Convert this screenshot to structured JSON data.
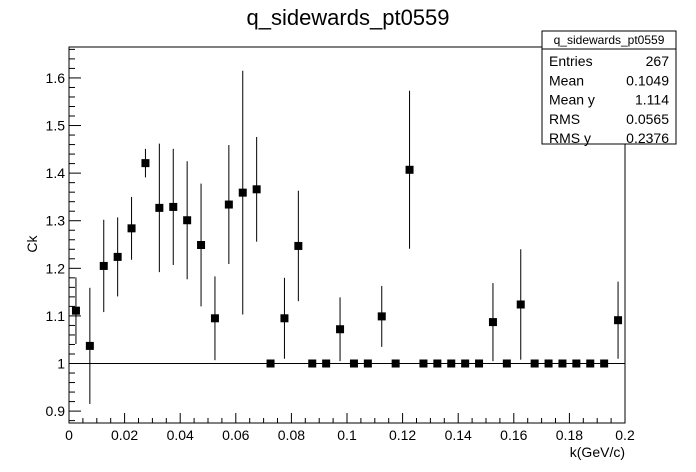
{
  "chart_data": {
    "type": "scatter",
    "title": "q_sidewards_pt0559",
    "xlabel": "k(GeV/c)",
    "ylabel": "Ck",
    "xlim": [
      0,
      0.2
    ],
    "ylim": [
      0.875,
      1.665
    ],
    "x_ticks": [
      "0",
      "0.02",
      "0.04",
      "0.06",
      "0.08",
      "0.1",
      "0.12",
      "0.14",
      "0.16",
      "0.18",
      "0.2"
    ],
    "x_tick_values": [
      0,
      0.02,
      0.04,
      0.06,
      0.08,
      0.1,
      0.12,
      0.14,
      0.16,
      0.18,
      0.2
    ],
    "y_ticks": [
      "0.9",
      "1",
      "1.1",
      "1.2",
      "1.3",
      "1.4",
      "1.5",
      "1.6"
    ],
    "y_tick_values": [
      0.9,
      1.0,
      1.1,
      1.2,
      1.3,
      1.4,
      1.5,
      1.6
    ],
    "reference_line": 1.0,
    "grid": false,
    "legend": "none",
    "marker_color": "#000000",
    "series": [
      {
        "points": [
          {
            "x": 0.0025,
            "y": 1.111,
            "err": 0.07
          },
          {
            "x": 0.0075,
            "y": 1.037,
            "err": 0.122
          },
          {
            "x": 0.0125,
            "y": 1.205,
            "err": 0.097
          },
          {
            "x": 0.0175,
            "y": 1.224,
            "err": 0.083
          },
          {
            "x": 0.0225,
            "y": 1.284,
            "err": 0.066
          },
          {
            "x": 0.0275,
            "y": 1.421,
            "err": 0.03
          },
          {
            "x": 0.0325,
            "y": 1.327,
            "err": 0.135
          },
          {
            "x": 0.0375,
            "y": 1.329,
            "err": 0.122
          },
          {
            "x": 0.0425,
            "y": 1.301,
            "err": 0.124
          },
          {
            "x": 0.0475,
            "y": 1.249,
            "err": 0.129
          },
          {
            "x": 0.0525,
            "y": 1.095,
            "err": 0.088
          },
          {
            "x": 0.0575,
            "y": 1.334,
            "err": 0.125
          },
          {
            "x": 0.0625,
            "y": 1.359,
            "err": 0.256
          },
          {
            "x": 0.0675,
            "y": 1.366,
            "err": 0.11
          },
          {
            "x": 0.0725,
            "y": 1.0,
            "err": 0
          },
          {
            "x": 0.0775,
            "y": 1.095,
            "err": 0.085
          },
          {
            "x": 0.0825,
            "y": 1.247,
            "err": 0.116
          },
          {
            "x": 0.0875,
            "y": 1.0,
            "err": 0
          },
          {
            "x": 0.0925,
            "y": 1.0,
            "err": 0
          },
          {
            "x": 0.0975,
            "y": 1.072,
            "err": 0.067
          },
          {
            "x": 0.1025,
            "y": 1.0,
            "err": 0
          },
          {
            "x": 0.1075,
            "y": 1.0,
            "err": 0
          },
          {
            "x": 0.1125,
            "y": 1.099,
            "err": 0.064
          },
          {
            "x": 0.1175,
            "y": 1.0,
            "err": 0
          },
          {
            "x": 0.1225,
            "y": 1.407,
            "err": 0.166
          },
          {
            "x": 0.1275,
            "y": 1.0,
            "err": 0
          },
          {
            "x": 0.1325,
            "y": 1.0,
            "err": 0
          },
          {
            "x": 0.1375,
            "y": 1.0,
            "err": 0
          },
          {
            "x": 0.1425,
            "y": 1.0,
            "err": 0
          },
          {
            "x": 0.1475,
            "y": 1.0,
            "err": 0
          },
          {
            "x": 0.1525,
            "y": 1.087,
            "err": 0.082
          },
          {
            "x": 0.1575,
            "y": 1.0,
            "err": 0
          },
          {
            "x": 0.1625,
            "y": 1.124,
            "err": 0.116
          },
          {
            "x": 0.1675,
            "y": 1.0,
            "err": 0
          },
          {
            "x": 0.1725,
            "y": 1.0,
            "err": 0
          },
          {
            "x": 0.1775,
            "y": 1.0,
            "err": 0
          },
          {
            "x": 0.1825,
            "y": 1.0,
            "err": 0
          },
          {
            "x": 0.1875,
            "y": 1.0,
            "err": 0
          },
          {
            "x": 0.1925,
            "y": 1.0,
            "err": 0
          },
          {
            "x": 0.1975,
            "y": 1.091,
            "err": 0.081
          }
        ]
      }
    ]
  },
  "stats_box": {
    "name": "q_sidewards_pt0559",
    "rows": [
      {
        "label": "Entries",
        "value": "267"
      },
      {
        "label": "Mean",
        "value": "0.1049"
      },
      {
        "label": "Mean y",
        "value": "1.114"
      },
      {
        "label": "RMS",
        "value": "0.0565"
      },
      {
        "label": "RMS y",
        "value": "0.2376"
      }
    ]
  }
}
